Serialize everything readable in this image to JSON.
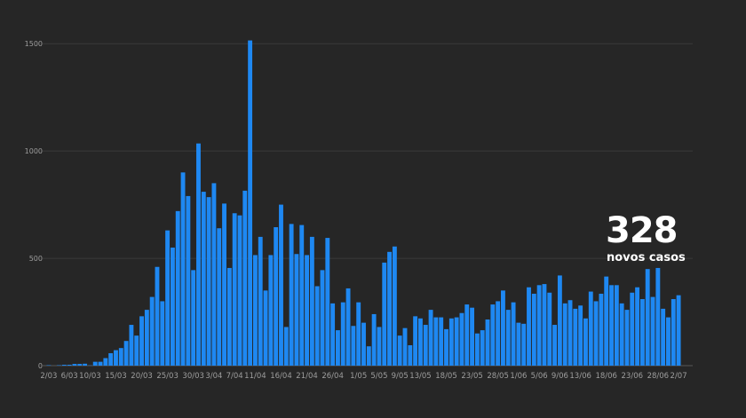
{
  "chart_data": {
    "type": "bar",
    "title": "",
    "xlabel": "",
    "ylabel": "",
    "ylim": [
      0,
      1600
    ],
    "yticks": [
      0,
      500,
      1000,
      1500
    ],
    "grid": true,
    "bar_color": "#1e88f2",
    "background": "#262626",
    "start_date": "2020-03-02",
    "x_tick_labels": [
      {
        "index": 0,
        "label": "2/03"
      },
      {
        "index": 4,
        "label": "6/03"
      },
      {
        "index": 8,
        "label": "10/03"
      },
      {
        "index": 13,
        "label": "15/03"
      },
      {
        "index": 18,
        "label": "20/03"
      },
      {
        "index": 23,
        "label": "25/03"
      },
      {
        "index": 28,
        "label": "30/03"
      },
      {
        "index": 32,
        "label": "3/04"
      },
      {
        "index": 36,
        "label": "7/04"
      },
      {
        "index": 40,
        "label": "11/04"
      },
      {
        "index": 45,
        "label": "16/04"
      },
      {
        "index": 50,
        "label": "21/04"
      },
      {
        "index": 55,
        "label": "26/04"
      },
      {
        "index": 60,
        "label": "1/05"
      },
      {
        "index": 64,
        "label": "5/05"
      },
      {
        "index": 68,
        "label": "9/05"
      },
      {
        "index": 72,
        "label": "13/05"
      },
      {
        "index": 77,
        "label": "18/05"
      },
      {
        "index": 82,
        "label": "23/05"
      },
      {
        "index": 87,
        "label": "28/05"
      },
      {
        "index": 91,
        "label": "1/06"
      },
      {
        "index": 95,
        "label": "5/06"
      },
      {
        "index": 99,
        "label": "9/06"
      },
      {
        "index": 103,
        "label": "13/06"
      },
      {
        "index": 108,
        "label": "18/06"
      },
      {
        "index": 113,
        "label": "23/06"
      },
      {
        "index": 118,
        "label": "28/06"
      },
      {
        "index": 122,
        "label": "2/07"
      }
    ],
    "values": [
      2,
      0,
      2,
      4,
      4,
      8,
      8,
      9,
      1,
      18,
      18,
      35,
      58,
      72,
      82,
      115,
      190,
      140,
      230,
      260,
      320,
      460,
      300,
      630,
      550,
      720,
      900,
      790,
      445,
      1035,
      810,
      785,
      850,
      640,
      755,
      455,
      710,
      700,
      815,
      1515,
      515,
      600,
      350,
      515,
      645,
      750,
      180,
      660,
      520,
      655,
      515,
      600,
      370,
      445,
      595,
      290,
      165,
      295,
      360,
      185,
      295,
      200,
      90,
      240,
      180,
      480,
      530,
      555,
      140,
      175,
      95,
      230,
      220,
      190,
      260,
      225,
      225,
      170,
      220,
      225,
      245,
      285,
      270,
      150,
      165,
      215,
      285,
      300,
      350,
      260,
      295,
      200,
      195,
      365,
      335,
      375,
      380,
      340,
      190,
      420,
      290,
      305,
      265,
      280,
      220,
      345,
      300,
      335,
      415,
      375,
      375,
      290,
      260,
      340,
      365,
      310,
      450,
      320,
      455,
      265,
      225,
      310,
      328
    ]
  },
  "callout": {
    "number": "328",
    "label": "novos casos"
  }
}
